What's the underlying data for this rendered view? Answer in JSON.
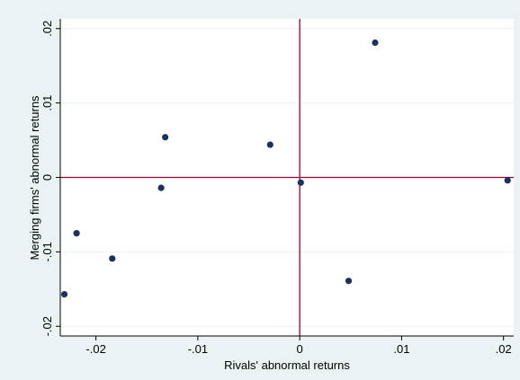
{
  "chart_data": {
    "type": "scatter",
    "title": "",
    "xlabel": "Rivals' abnormal returns",
    "ylabel": "Merging firms' abnormal returns",
    "xlim": [
      -0.0235,
      0.021
    ],
    "ylim": [
      -0.0213,
      0.0213
    ],
    "x_ticks": [
      {
        "value": -0.02,
        "label": "-.02"
      },
      {
        "value": -0.01,
        "label": "-.01"
      },
      {
        "value": 0,
        "label": "0"
      },
      {
        "value": 0.01,
        "label": ".01"
      },
      {
        "value": 0.02,
        "label": ".02"
      }
    ],
    "y_ticks": [
      {
        "value": -0.02,
        "label": "-.02"
      },
      {
        "value": -0.01,
        "label": "-.01"
      },
      {
        "value": 0,
        "label": "0"
      },
      {
        "value": 0.01,
        "label": ".01"
      },
      {
        "value": 0.02,
        "label": ".02"
      }
    ],
    "grid": true,
    "reference_lines": {
      "x": 0,
      "y": 0
    },
    "points": [
      {
        "x": -0.0231,
        "y": -0.0157
      },
      {
        "x": -0.0219,
        "y": -0.0075
      },
      {
        "x": -0.0184,
        "y": -0.0109
      },
      {
        "x": -0.0136,
        "y": -0.0014
      },
      {
        "x": -0.0132,
        "y": 0.0054
      },
      {
        "x": -0.0029,
        "y": 0.0044
      },
      {
        "x": 0.0001,
        "y": -0.0007
      },
      {
        "x": 0.0048,
        "y": -0.0139
      },
      {
        "x": 0.0074,
        "y": 0.0181
      },
      {
        "x": 0.0204,
        "y": -0.0004
      }
    ],
    "colors": {
      "outer_background": "#eaf2f3",
      "plot_background": "#ffffff",
      "grid": "#eaf2f3",
      "reference_line": "#990033",
      "marker": "#1a3260",
      "axis": "#000000"
    }
  }
}
